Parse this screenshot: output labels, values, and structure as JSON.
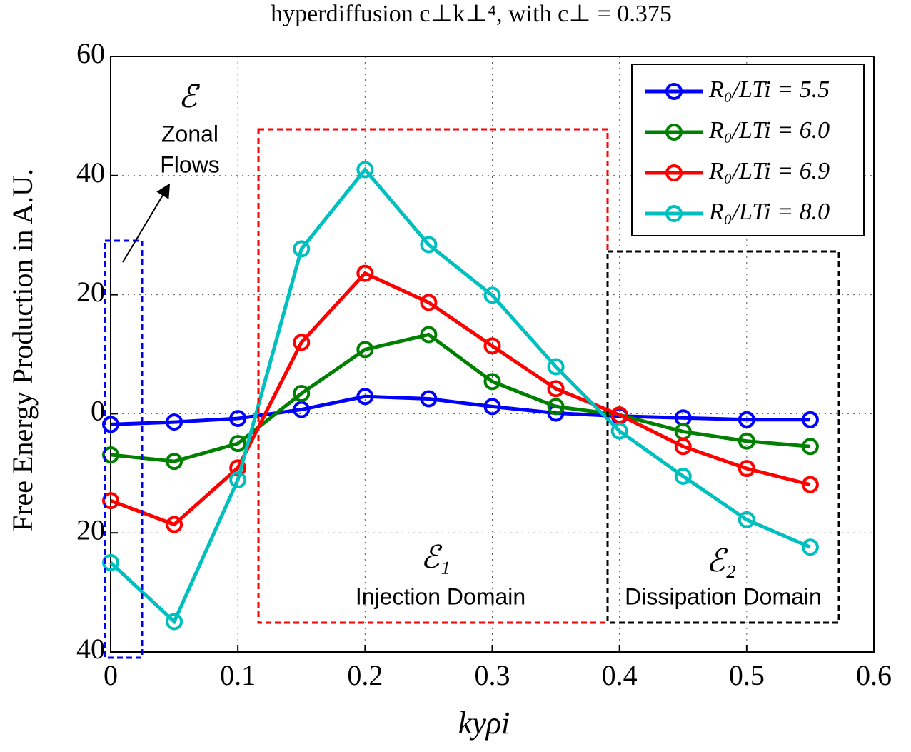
{
  "chart_data": {
    "type": "line",
    "title": "hyperdiffusion c⊥k⊥⁴, with c⊥ = 0.375",
    "x_label": "kyρi",
    "y_label": "Free Energy Production in A.U.",
    "x": [
      0,
      0.05,
      0.1,
      0.15,
      0.2,
      0.25,
      0.3,
      0.35,
      0.4,
      0.45,
      0.5,
      0.55
    ],
    "series": [
      {
        "name": "R₀/LTi = 5.5",
        "color": "#0000ff",
        "values": [
          -1.8,
          -1.4,
          -0.8,
          0.7,
          2.9,
          2.5,
          1.2,
          0.1,
          -0.4,
          -0.7,
          -1.0,
          -1.0
        ]
      },
      {
        "name": "R₀/LTi = 6.0",
        "color": "#008000",
        "values": [
          -6.9,
          -8.0,
          -5.0,
          3.4,
          10.8,
          13.3,
          5.4,
          1.2,
          -0.2,
          -3.0,
          -4.6,
          -5.5
        ]
      },
      {
        "name": "R₀/LTi = 6.9",
        "color": "#ff0000",
        "values": [
          -14.6,
          -18.6,
          -9.1,
          12.0,
          23.6,
          18.7,
          11.4,
          4.2,
          -0.2,
          -5.5,
          -9.2,
          -11.9
        ]
      },
      {
        "name": "R₀/LTi = 8.0",
        "color": "#00bfbf",
        "values": [
          -25.0,
          -34.9,
          -11.1,
          27.7,
          41.0,
          28.4,
          19.9,
          7.9,
          -2.9,
          -10.5,
          -17.8,
          -22.4
        ]
      }
    ],
    "xlim": [
      0,
      0.6
    ],
    "xticks": [
      0,
      0.1,
      0.2,
      0.3,
      0.4,
      0.5,
      0.6
    ],
    "ylim": [
      -40,
      60
    ],
    "yticks": [
      {
        "value": -40,
        "label": "40"
      },
      {
        "value": -20,
        "label": "20"
      },
      0,
      20,
      40,
      60
    ],
    "grid": true,
    "legend": "upper right",
    "annotations": {
      "zonal_symbol": "ℰ̄",
      "zonal_line1": "Zonal",
      "zonal_line2": "Flows",
      "injection_symbol": "ℰ₁",
      "injection_label": "Injection Domain",
      "dissipation_symbol": "ℰ₂",
      "dissipation_label": "Dissipation Domain"
    }
  }
}
